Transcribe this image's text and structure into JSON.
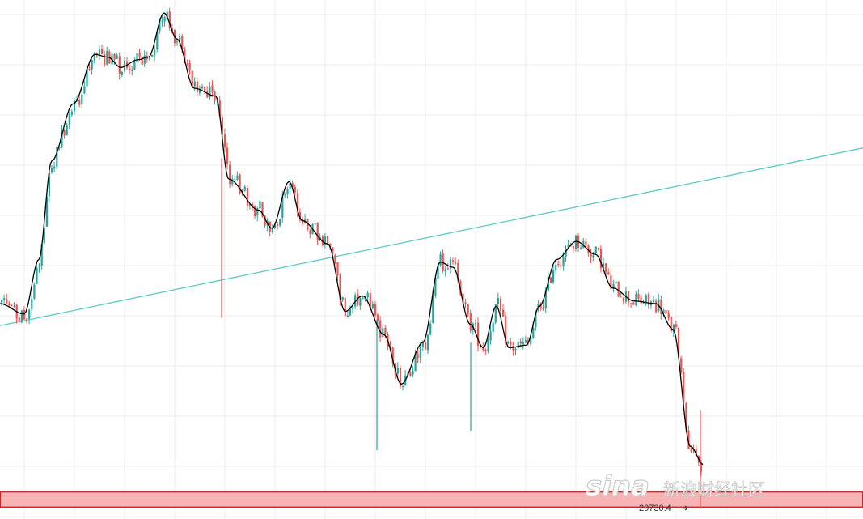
{
  "chart_data": {
    "type": "candlestick",
    "title": "",
    "xlabel": "",
    "ylabel": "",
    "grid": true,
    "colors": {
      "up": "#26a69a",
      "down": "#ef5350",
      "ma_line": "#000000",
      "trend_line": "#5cc8c8",
      "support_zone_fill": "#f8b4b4",
      "support_zone_border": "#cc2a2a",
      "grid": "#eeeeee"
    },
    "ylim": [
      29650,
      31650
    ],
    "current_price": "29730.4",
    "current_price_value": 29730.4,
    "support_zone": [
      29695,
      29755
    ],
    "trendline": {
      "from": [
        0,
        30395
      ],
      "to": [
        1,
        31080
      ]
    },
    "moving_average_waypoints": [
      [
        0,
        30480
      ],
      [
        0.028,
        30440
      ],
      [
        0.045,
        30650
      ],
      [
        0.06,
        31030
      ],
      [
        0.085,
        31250
      ],
      [
        0.11,
        31440
      ],
      [
        0.125,
        31430
      ],
      [
        0.14,
        31390
      ],
      [
        0.16,
        31420
      ],
      [
        0.172,
        31430
      ],
      [
        0.19,
        31600
      ],
      [
        0.205,
        31500
      ],
      [
        0.225,
        31310
      ],
      [
        0.25,
        31280
      ],
      [
        0.265,
        30960
      ],
      [
        0.3,
        30840
      ],
      [
        0.315,
        30770
      ],
      [
        0.335,
        30950
      ],
      [
        0.35,
        30800
      ],
      [
        0.38,
        30710
      ],
      [
        0.4,
        30450
      ],
      [
        0.42,
        30510
      ],
      [
        0.445,
        30360
      ],
      [
        0.465,
        30170
      ],
      [
        0.49,
        30330
      ],
      [
        0.51,
        30640
      ],
      [
        0.525,
        30620
      ],
      [
        0.545,
        30400
      ],
      [
        0.56,
        30310
      ],
      [
        0.575,
        30470
      ],
      [
        0.59,
        30310
      ],
      [
        0.61,
        30320
      ],
      [
        0.625,
        30470
      ],
      [
        0.645,
        30650
      ],
      [
        0.668,
        30720
      ],
      [
        0.69,
        30670
      ],
      [
        0.71,
        30540
      ],
      [
        0.735,
        30490
      ],
      [
        0.76,
        30480
      ],
      [
        0.78,
        30380
      ],
      [
        0.8,
        29930
      ],
      [
        0.815,
        29860
      ]
    ]
  },
  "watermark": {
    "logo": "sina",
    "text": "新浪财经社区"
  }
}
